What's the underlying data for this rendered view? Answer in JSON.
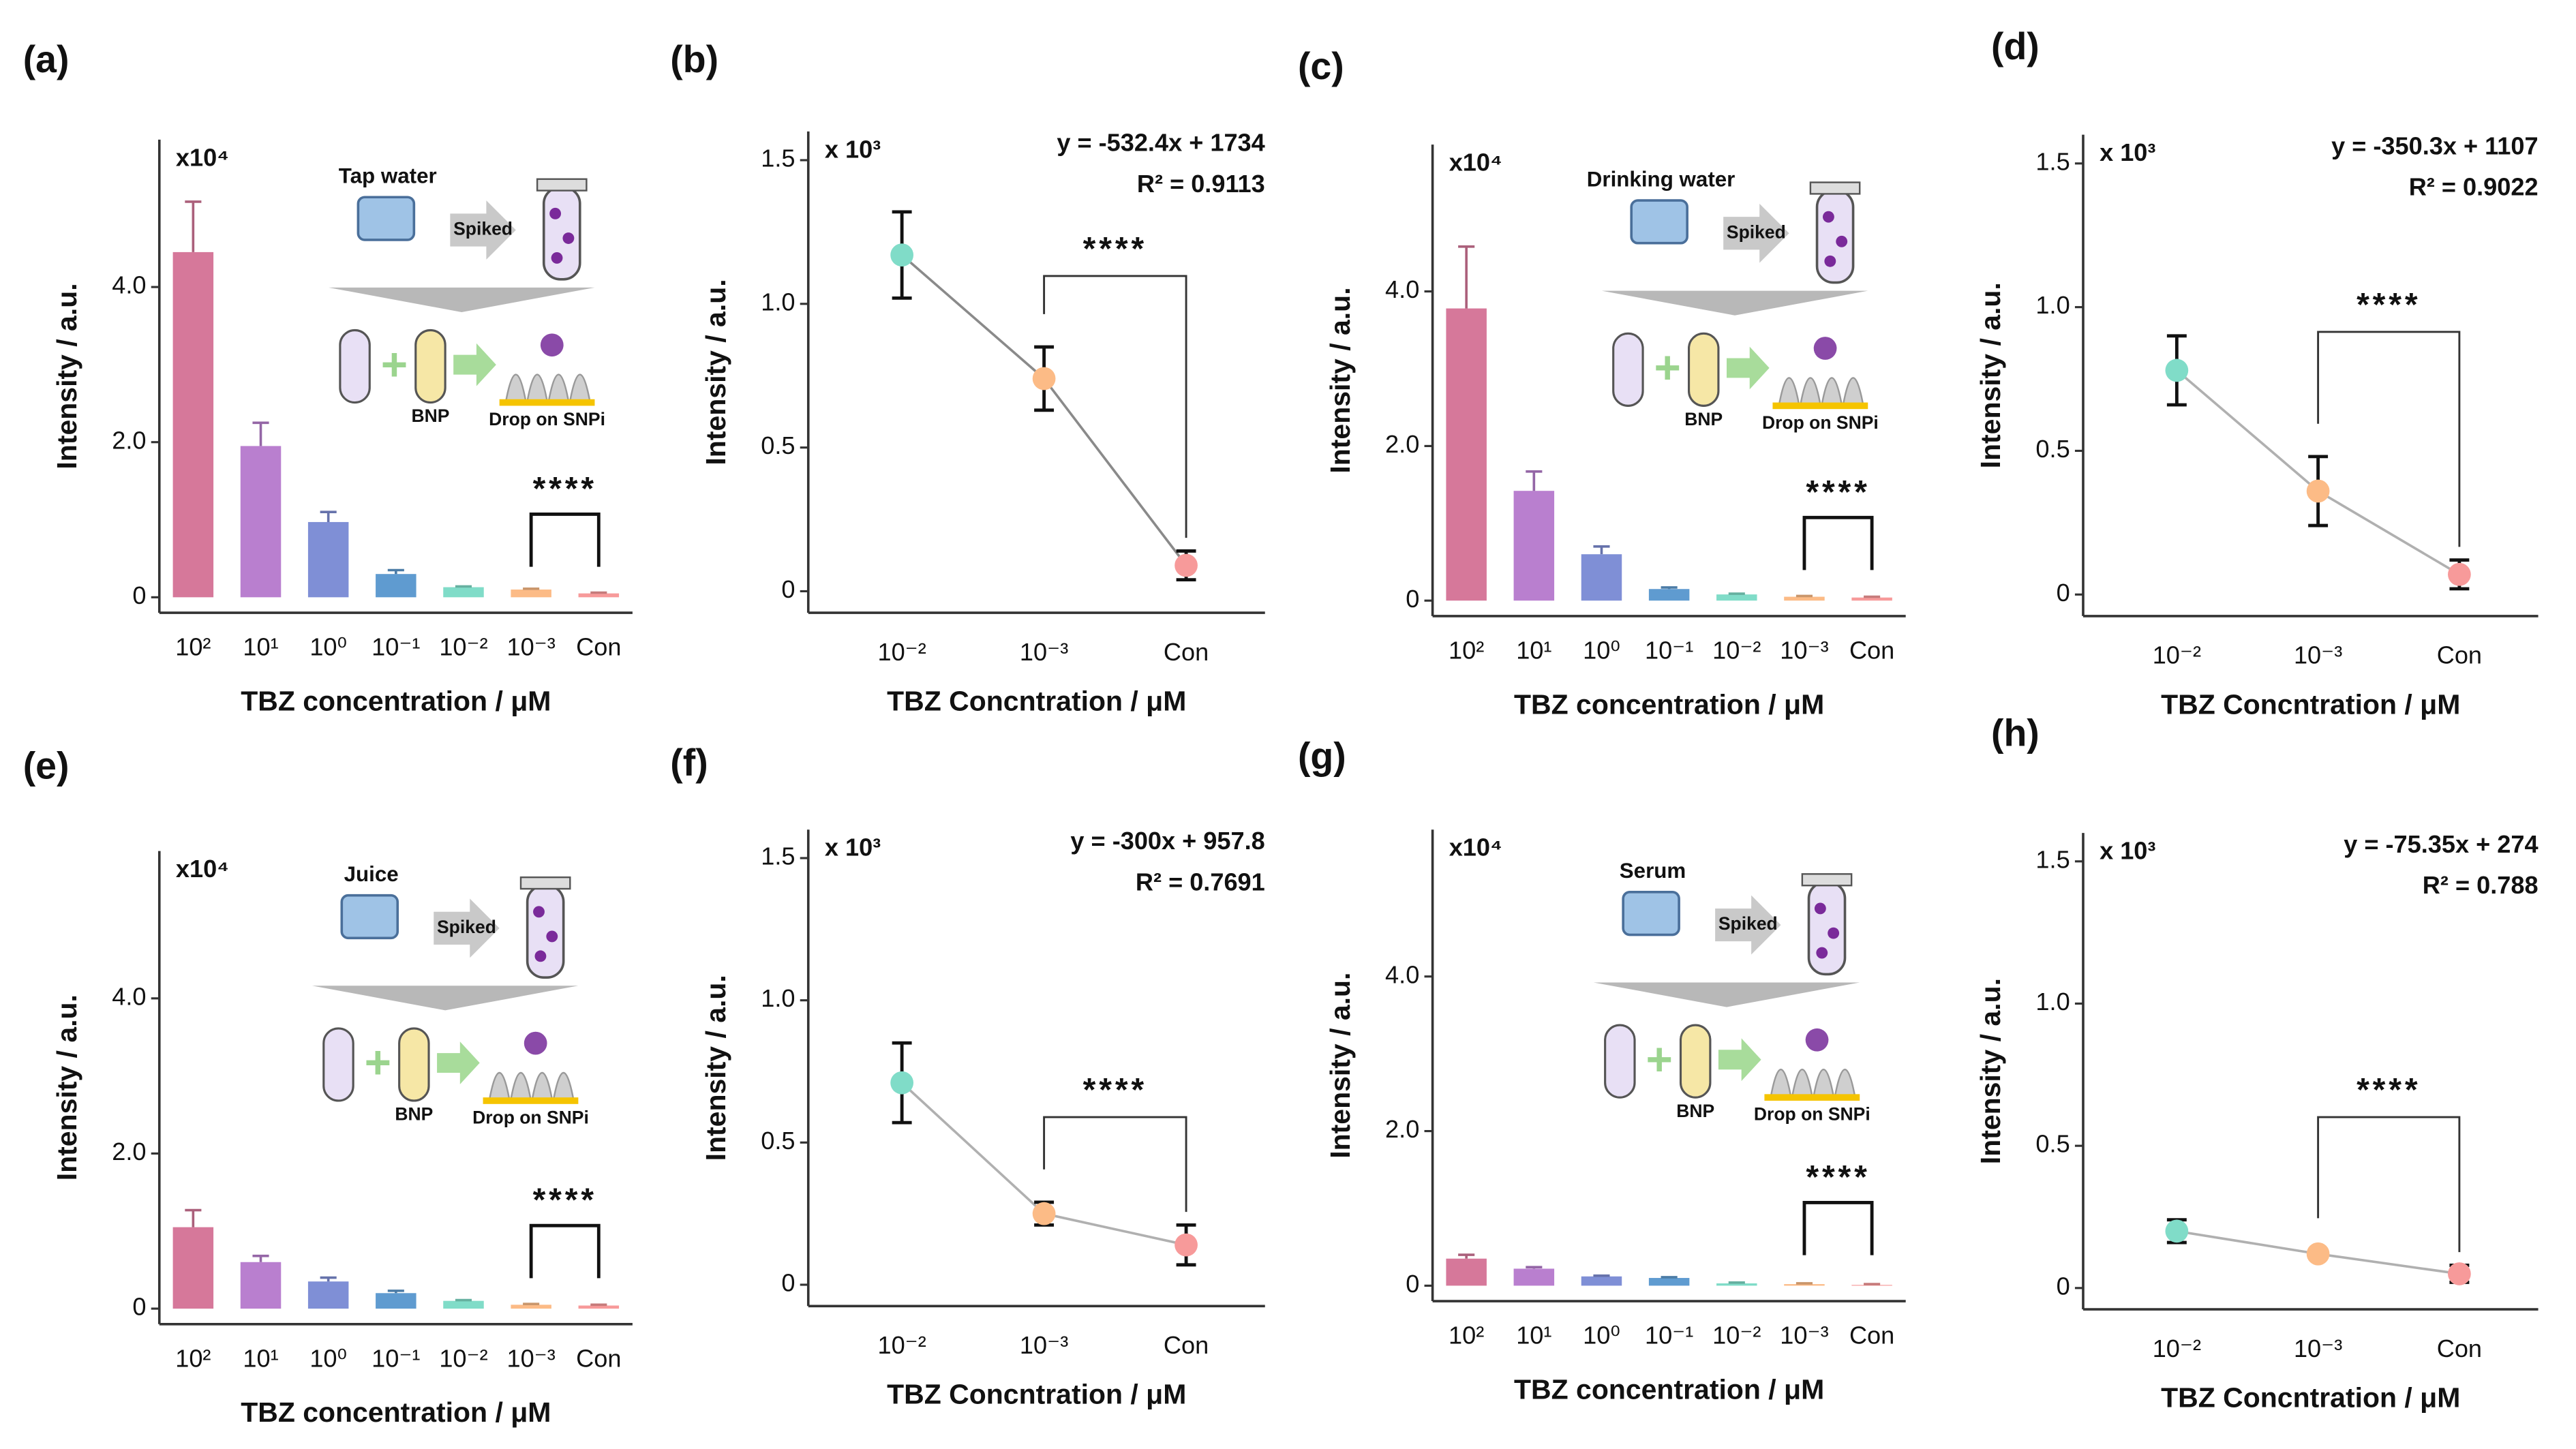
{
  "chart_data": [
    {
      "panel": "(a)",
      "type": "bar",
      "y_unit": "x10⁴",
      "inset_labels": [
        "Tap water",
        "Spiked",
        "BNP",
        "Drop on SNPi"
      ],
      "significance": "****",
      "categories": [
        "10²",
        "10¹",
        "10⁰",
        "10⁻¹",
        "10⁻²",
        "10⁻³",
        "Con"
      ],
      "values": [
        4.45,
        1.95,
        0.97,
        0.3,
        0.13,
        0.1,
        0.05
      ],
      "errors": [
        0.65,
        0.3,
        0.13,
        0.05,
        0.01,
        0.01,
        0.01
      ],
      "colors": [
        "#d6789a",
        "#b97fcf",
        "#7f8fd6",
        "#5f9bd0",
        "#80dcc8",
        "#fcbb86",
        "#f79a9a"
      ],
      "xlabel": "TBZ concentration / μM",
      "ylabel": "Intensity / a.u.",
      "ylim": [
        -0.2,
        5.9
      ],
      "yticks": [
        0,
        {
          "value": 2,
          "label": "2.0"
        },
        {
          "value": 4,
          "label": "4.0"
        }
      ]
    },
    {
      "panel": "(b)",
      "type": "line",
      "y_unit": "x 10³",
      "equation": "y = -532.4x + 1734",
      "r2": "R² = 0.9113",
      "significance": "****",
      "categories": [
        "10⁻²",
        "10⁻³",
        "Con"
      ],
      "values": [
        1.17,
        0.74,
        0.09
      ],
      "errors": [
        0.15,
        0.11,
        0.05
      ],
      "colors": [
        "#80dcc8",
        "#fcbb86",
        "#f79a9a"
      ],
      "line_color": "#8a8a8a",
      "xlabel": "TBZ Concntration / μM",
      "ylabel": "Intensity / a.u.",
      "ylim": [
        -0.075,
        1.6
      ],
      "yticks": [
        0,
        0.5,
        {
          "value": 1,
          "label": "1.0"
        },
        1.5
      ]
    },
    {
      "panel": "(c)",
      "type": "bar",
      "y_unit": "x10⁴",
      "inset_labels": [
        "Drinking water",
        "Spiked",
        "BNP",
        "Drop on SNPi"
      ],
      "significance": "****",
      "categories": [
        "10²",
        "10¹",
        "10⁰",
        "10⁻¹",
        "10⁻²",
        "10⁻³",
        "Con"
      ],
      "values": [
        3.78,
        1.42,
        0.6,
        0.15,
        0.08,
        0.05,
        0.04
      ],
      "errors": [
        0.8,
        0.25,
        0.1,
        0.02,
        0.01,
        0.01,
        0.01
      ],
      "colors": [
        "#d6789a",
        "#b97fcf",
        "#7f8fd6",
        "#5f9bd0",
        "#80dcc8",
        "#fcbb86",
        "#f79a9a"
      ],
      "xlabel": "TBZ concentration / μM",
      "ylabel": "Intensity / a.u.",
      "ylim": [
        -0.2,
        5.9
      ],
      "yticks": [
        0,
        {
          "value": 2,
          "label": "2.0"
        },
        {
          "value": 4,
          "label": "4.0"
        }
      ]
    },
    {
      "panel": "(d)",
      "type": "line",
      "y_unit": "x 10³",
      "equation": "y = -350.3x + 1107",
      "r2": "R² = 0.9022",
      "significance": "****",
      "categories": [
        "10⁻²",
        "10⁻³",
        "Con"
      ],
      "values": [
        0.78,
        0.36,
        0.07
      ],
      "errors": [
        0.12,
        0.12,
        0.05
      ],
      "colors": [
        "#80dcc8",
        "#fcbb86",
        "#f79a9a"
      ],
      "line_color": "#b0b0b0",
      "xlabel": "TBZ Concntration / μM",
      "ylabel": "Intensity / a.u.",
      "ylim": [
        -0.075,
        1.6
      ],
      "yticks": [
        0,
        0.5,
        {
          "value": 1,
          "label": "1.0"
        },
        1.5
      ]
    },
    {
      "panel": "(e)",
      "type": "bar",
      "y_unit": "x10⁴",
      "inset_labels": [
        "Juice",
        "Spiked",
        "BNP",
        "Drop on SNPi"
      ],
      "significance": "****",
      "categories": [
        "10²",
        "10¹",
        "10⁰",
        "10⁻¹",
        "10⁻²",
        "10⁻³",
        "Con"
      ],
      "values": [
        1.05,
        0.6,
        0.35,
        0.2,
        0.1,
        0.05,
        0.04
      ],
      "errors": [
        0.22,
        0.08,
        0.05,
        0.03,
        0.01,
        0.01,
        0.01
      ],
      "colors": [
        "#d6789a",
        "#b97fcf",
        "#7f8fd6",
        "#5f9bd0",
        "#80dcc8",
        "#fcbb86",
        "#f79a9a"
      ],
      "xlabel": "TBZ concentration / μM",
      "ylabel": "Intensity / a.u.",
      "ylim": [
        -0.2,
        5.9
      ],
      "yticks": [
        0,
        {
          "value": 2,
          "label": "2.0"
        },
        {
          "value": 4,
          "label": "4.0"
        }
      ]
    },
    {
      "panel": "(f)",
      "type": "line",
      "y_unit": "x 10³",
      "equation": "y = -300x + 957.8",
      "r2": "R² = 0.7691",
      "significance": "****",
      "categories": [
        "10⁻²",
        "10⁻³",
        "Con"
      ],
      "values": [
        0.71,
        0.25,
        0.14
      ],
      "errors": [
        0.14,
        0.04,
        0.07
      ],
      "colors": [
        "#80dcc8",
        "#fcbb86",
        "#f79a9a"
      ],
      "line_color": "#b0b0b0",
      "xlabel": "TBZ Concntration / μM",
      "ylabel": "Intensity / a.u.",
      "ylim": [
        -0.075,
        1.6
      ],
      "yticks": [
        0,
        0.5,
        {
          "value": 1,
          "label": "1.0"
        },
        1.5
      ]
    },
    {
      "panel": "(g)",
      "type": "bar",
      "y_unit": "x10⁴",
      "inset_labels": [
        "Serum",
        "Spiked",
        "BNP",
        "Drop on SNPi"
      ],
      "significance": "****",
      "categories": [
        "10²",
        "10¹",
        "10⁰",
        "10⁻¹",
        "10⁻²",
        "10⁻³",
        "Con"
      ],
      "values": [
        0.35,
        0.22,
        0.12,
        0.1,
        0.03,
        0.02,
        0.01
      ],
      "errors": [
        0.05,
        0.02,
        0.01,
        0.01,
        0.01,
        0.01,
        0.01
      ],
      "colors": [
        "#d6789a",
        "#b97fcf",
        "#7f8fd6",
        "#5f9bd0",
        "#80dcc8",
        "#fcbb86",
        "#f79a9a"
      ],
      "xlabel": "TBZ concentration / μM",
      "ylabel": "Intensity / a.u.",
      "ylim": [
        -0.2,
        5.9
      ],
      "yticks": [
        0,
        {
          "value": 2,
          "label": "2.0"
        },
        {
          "value": 4,
          "label": "4.0"
        }
      ]
    },
    {
      "panel": "(h)",
      "type": "line",
      "y_unit": "x 10³",
      "equation": "y = -75.35x + 274",
      "r2": "R² = 0.788",
      "significance": "****",
      "categories": [
        "10⁻²",
        "10⁻³",
        "Con"
      ],
      "values": [
        0.2,
        0.12,
        0.05
      ],
      "errors": [
        0.04,
        0.01,
        0.03
      ],
      "colors": [
        "#80dcc8",
        "#fcbb86",
        "#f79a9a"
      ],
      "line_color": "#b0b0b0",
      "xlabel": "TBZ Concntration / μM",
      "ylabel": "Intensity / a.u.",
      "ylim": [
        -0.075,
        1.6
      ],
      "yticks": [
        0,
        0.5,
        {
          "value": 1,
          "label": "1.0"
        },
        1.5
      ]
    }
  ]
}
